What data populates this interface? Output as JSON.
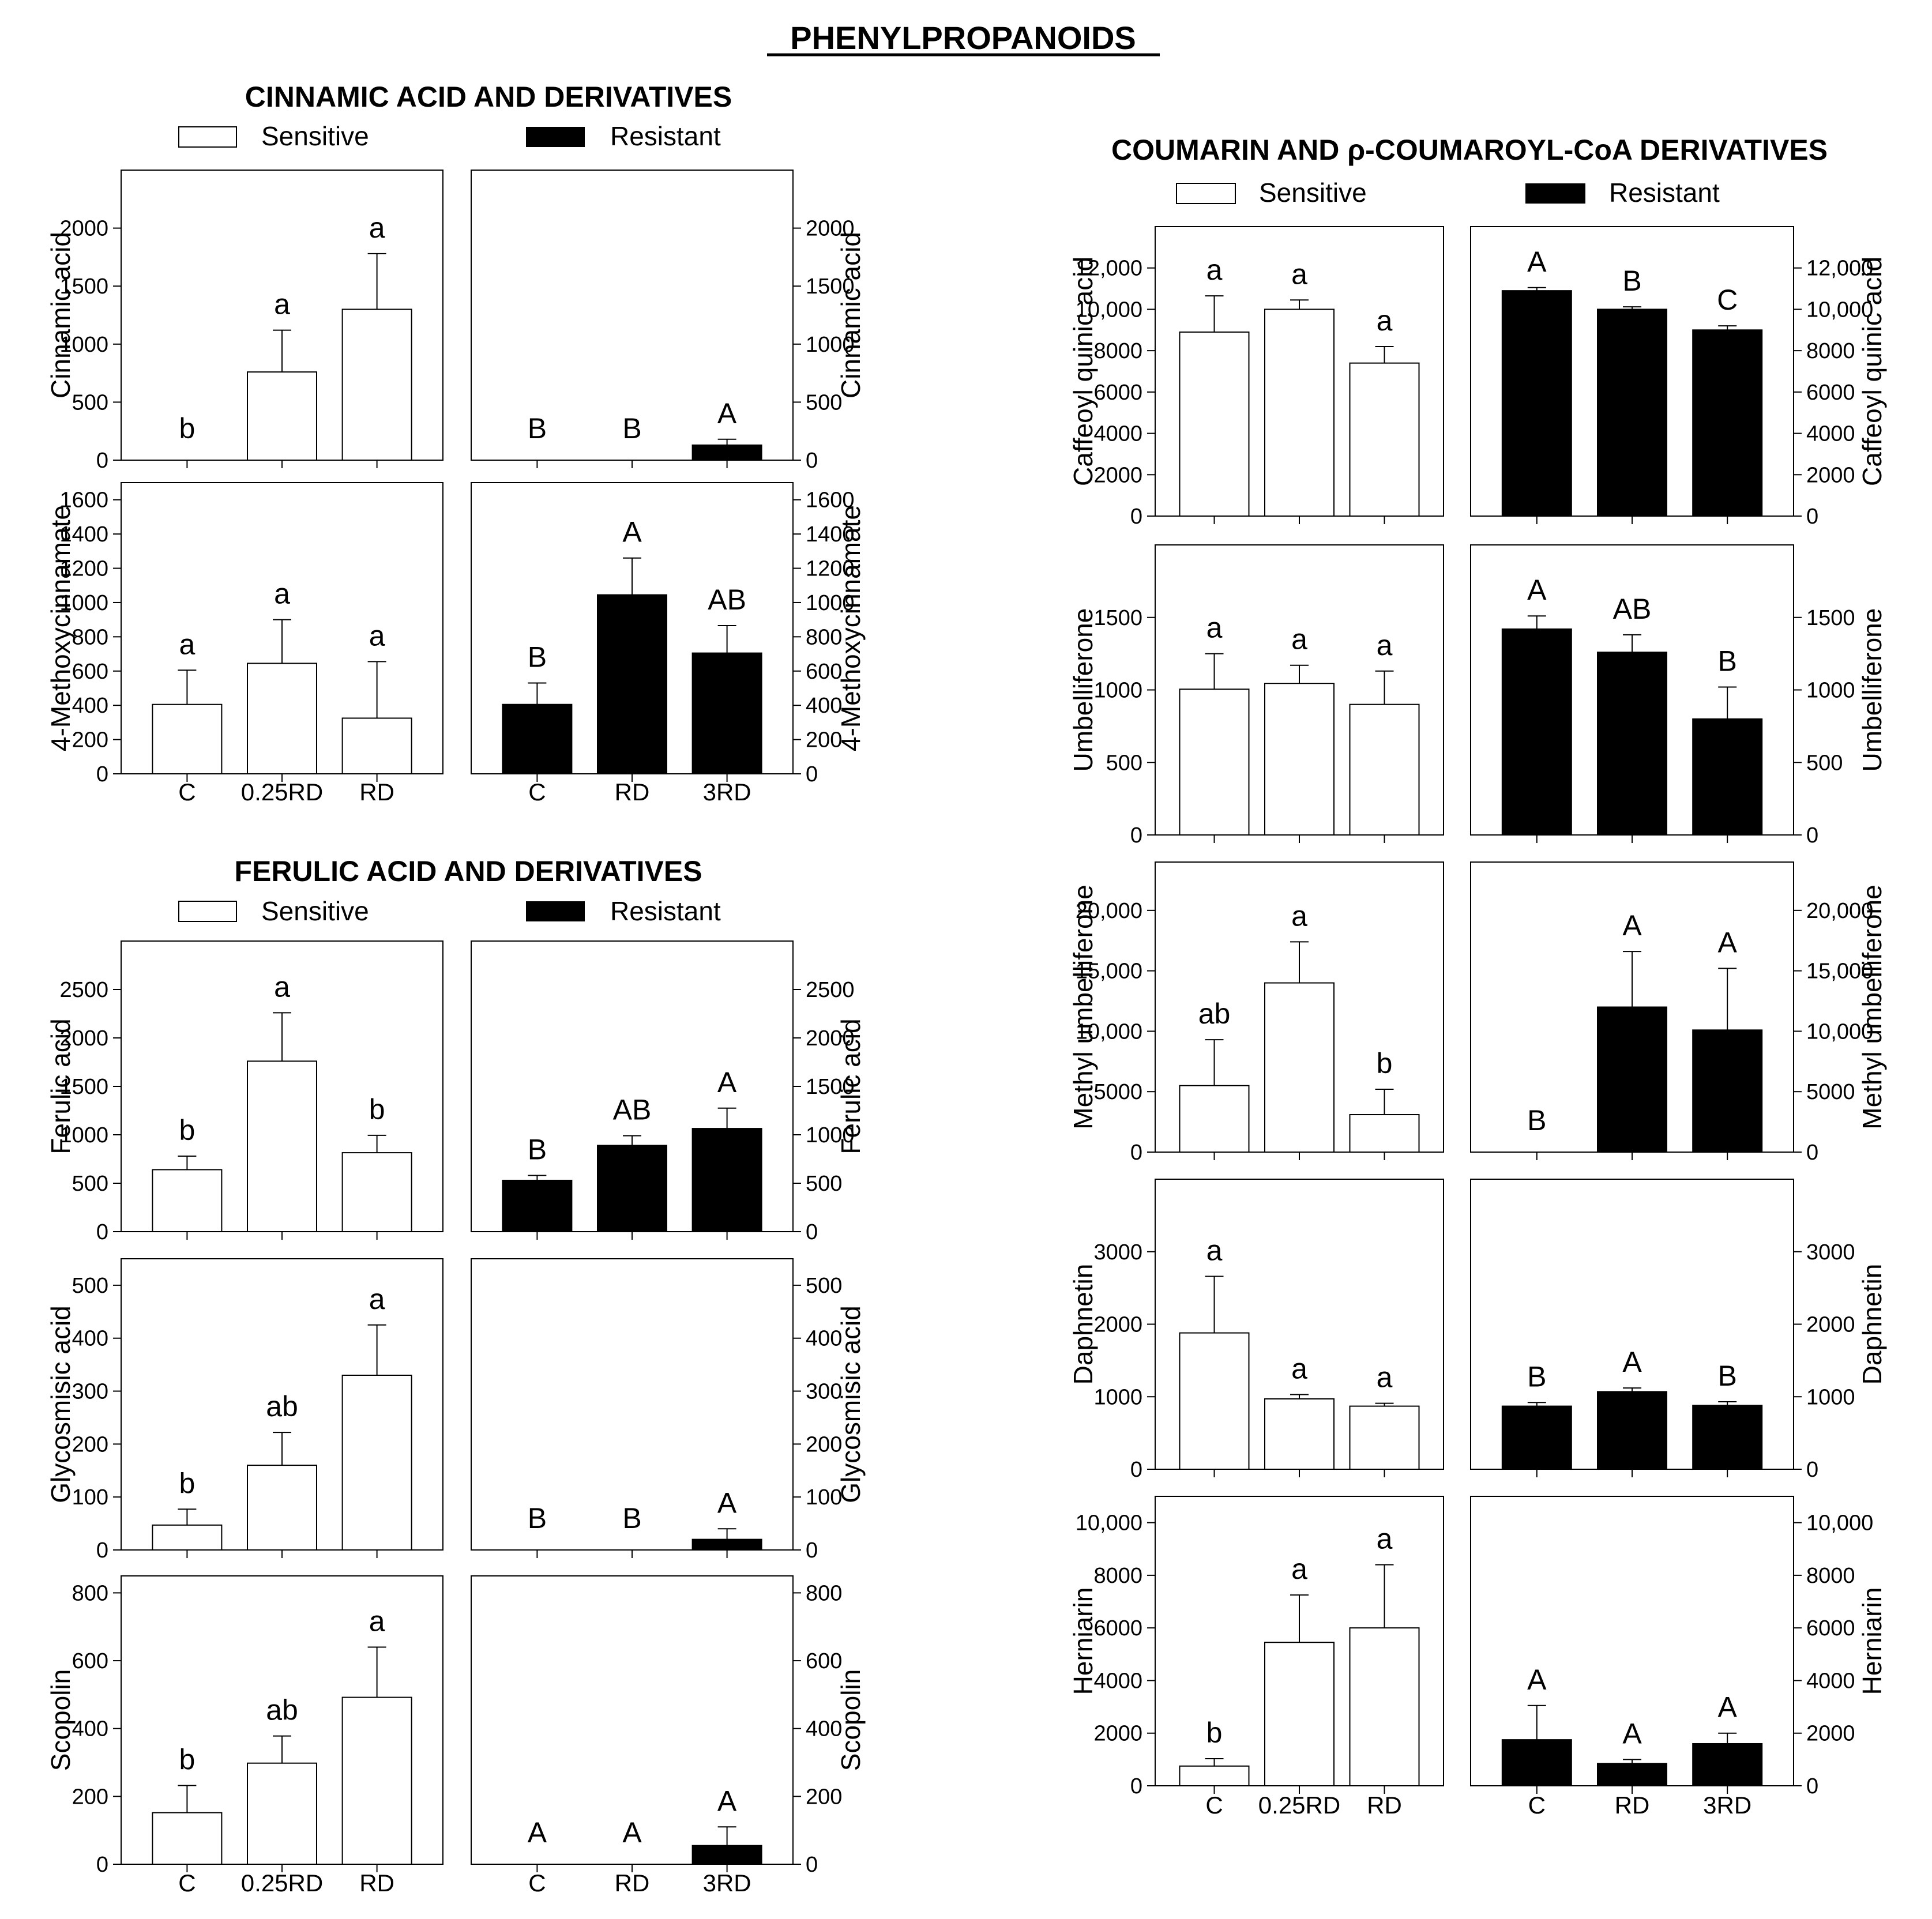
{
  "title": "PHENYLPROPANOIDS",
  "sections": [
    {
      "title": "CINNAMIC ACID AND DERIVATIVES",
      "legend": {
        "sensitive": "Sensitive",
        "resistant": "Resistant"
      }
    },
    {
      "title": "FERULIC ACID AND DERIVATIVES",
      "legend": {
        "sensitive": "Sensitive",
        "resistant": "Resistant"
      }
    },
    {
      "title": "COUMARIN AND ρ-COUMAROYL-CoA DERIVATIVES",
      "legend": {
        "sensitive": "Sensitive",
        "resistant": "Resistant"
      }
    }
  ],
  "x_labels": {
    "sensitive": [
      "C",
      "0.25RD",
      "RD"
    ],
    "resistant": [
      "C",
      "RD",
      "3RD"
    ]
  },
  "chart_data": [
    {
      "type": "bar",
      "ylabel": "Cinnamic acid",
      "ylim": [
        0,
        2500
      ],
      "ticks": [
        0,
        500,
        1000,
        1500,
        2000
      ],
      "tick_labels": [
        "0",
        "500",
        "1000",
        "1500",
        "2000"
      ],
      "series": [
        {
          "name": "Sensitive",
          "categories": [
            "C",
            "0.25RD",
            "RD"
          ],
          "values": [
            0,
            760,
            1300
          ],
          "errors": [
            0,
            360,
            480
          ],
          "letters": [
            "b",
            "a",
            "a"
          ]
        },
        {
          "name": "Resistant",
          "categories": [
            "C",
            "RD",
            "3RD"
          ],
          "values": [
            0,
            0,
            130
          ],
          "errors": [
            0,
            0,
            50
          ],
          "letters": [
            "B",
            "B",
            "A"
          ]
        }
      ]
    },
    {
      "type": "bar",
      "ylabel": "4-Methoxycinnamate",
      "ylim": [
        0,
        1700
      ],
      "ticks": [
        0,
        200,
        400,
        600,
        800,
        1000,
        1200,
        1400,
        1600
      ],
      "tick_labels": [
        "0",
        "200",
        "400",
        "600",
        "800",
        "1000",
        "1200",
        "1400",
        "1600"
      ],
      "series": [
        {
          "name": "Sensitive",
          "categories": [
            "C",
            "0.25RD",
            "RD"
          ],
          "values": [
            405,
            645,
            325
          ],
          "errors": [
            200,
            255,
            330
          ],
          "letters": [
            "a",
            "a",
            "a"
          ]
        },
        {
          "name": "Resistant",
          "categories": [
            "C",
            "RD",
            "3RD"
          ],
          "values": [
            405,
            1045,
            705
          ],
          "errors": [
            125,
            215,
            160
          ],
          "letters": [
            "B",
            "A",
            "AB"
          ]
        }
      ]
    },
    {
      "type": "bar",
      "ylabel": "Ferulic acid",
      "ylim": [
        0,
        3000
      ],
      "ticks": [
        0,
        500,
        1000,
        1500,
        2000,
        2500
      ],
      "tick_labels": [
        "0",
        "500",
        "1000",
        "1500",
        "2000",
        "2500"
      ],
      "series": [
        {
          "name": "Sensitive",
          "categories": [
            "C",
            "0.25RD",
            "RD"
          ],
          "values": [
            640,
            1760,
            815
          ],
          "errors": [
            140,
            500,
            180
          ],
          "letters": [
            "b",
            "a",
            "b"
          ]
        },
        {
          "name": "Resistant",
          "categories": [
            "C",
            "RD",
            "3RD"
          ],
          "values": [
            530,
            890,
            1065
          ],
          "errors": [
            50,
            100,
            210
          ],
          "letters": [
            "B",
            "AB",
            "A"
          ]
        }
      ]
    },
    {
      "type": "bar",
      "ylabel": "Glycosmisic acid",
      "ylim": [
        0,
        550
      ],
      "ticks": [
        0,
        100,
        200,
        300,
        400,
        500
      ],
      "tick_labels": [
        "0",
        "100",
        "200",
        "300",
        "400",
        "500"
      ],
      "series": [
        {
          "name": "Sensitive",
          "categories": [
            "C",
            "0.25RD",
            "RD"
          ],
          "values": [
            47,
            160,
            330
          ],
          "errors": [
            30,
            62,
            95
          ],
          "letters": [
            "b",
            "ab",
            "a"
          ]
        },
        {
          "name": "Resistant",
          "categories": [
            "C",
            "RD",
            "3RD"
          ],
          "values": [
            0,
            0,
            20
          ],
          "errors": [
            0,
            0,
            20
          ],
          "letters": [
            "B",
            "B",
            "A"
          ]
        }
      ]
    },
    {
      "type": "bar",
      "ylabel": "Scopolin",
      "ylim": [
        0,
        850
      ],
      "ticks": [
        0,
        200,
        400,
        600,
        800
      ],
      "tick_labels": [
        "0",
        "200",
        "400",
        "600",
        "800"
      ],
      "series": [
        {
          "name": "Sensitive",
          "categories": [
            "C",
            "0.25RD",
            "RD"
          ],
          "values": [
            152,
            298,
            492
          ],
          "errors": [
            80,
            80,
            148
          ],
          "letters": [
            "b",
            "ab",
            "a"
          ]
        },
        {
          "name": "Resistant",
          "categories": [
            "C",
            "RD",
            "3RD"
          ],
          "values": [
            0,
            0,
            55
          ],
          "errors": [
            0,
            0,
            55
          ],
          "letters": [
            "A",
            "A",
            "A"
          ]
        }
      ]
    },
    {
      "type": "bar",
      "ylabel": "Caffeoyl quinic acid",
      "ylim": [
        0,
        14000
      ],
      "ticks": [
        0,
        2000,
        4000,
        6000,
        8000,
        10000,
        12000
      ],
      "tick_labels": [
        "0",
        "2000",
        "4000",
        "6000",
        "8000",
        "10,000",
        "12,000"
      ],
      "series": [
        {
          "name": "Sensitive",
          "categories": [
            "C",
            "0.25RD",
            "RD"
          ],
          "values": [
            8900,
            10000,
            7400
          ],
          "errors": [
            1750,
            450,
            800
          ],
          "letters": [
            "a",
            "a",
            "a"
          ]
        },
        {
          "name": "Resistant",
          "categories": [
            "C",
            "RD",
            "3RD"
          ],
          "values": [
            10900,
            10000,
            9000
          ],
          "errors": [
            150,
            120,
            200
          ],
          "letters": [
            "A",
            "B",
            "C"
          ]
        }
      ]
    },
    {
      "type": "bar",
      "ylabel": "Umbelliferone",
      "ylim": [
        0,
        2000
      ],
      "ticks": [
        0,
        500,
        1000,
        1500
      ],
      "tick_labels": [
        "0",
        "500",
        "1000",
        "1500"
      ],
      "series": [
        {
          "name": "Sensitive",
          "categories": [
            "C",
            "0.25RD",
            "RD"
          ],
          "values": [
            1005,
            1045,
            900
          ],
          "errors": [
            245,
            125,
            230
          ],
          "letters": [
            "a",
            "a",
            "a"
          ]
        },
        {
          "name": "Resistant",
          "categories": [
            "C",
            "RD",
            "3RD"
          ],
          "values": [
            1420,
            1260,
            800
          ],
          "errors": [
            90,
            120,
            220
          ],
          "letters": [
            "A",
            "AB",
            "B"
          ]
        }
      ]
    },
    {
      "type": "bar",
      "ylabel": "Methyl umbelliferone",
      "ylim": [
        0,
        24000
      ],
      "ticks": [
        0,
        5000,
        10000,
        15000,
        20000
      ],
      "tick_labels": [
        "0",
        "5000",
        "10,000",
        "15,000",
        "20,000"
      ],
      "series": [
        {
          "name": "Sensitive",
          "categories": [
            "C",
            "0.25RD",
            "RD"
          ],
          "values": [
            5500,
            14000,
            3100
          ],
          "errors": [
            3800,
            3400,
            2100
          ],
          "letters": [
            "ab",
            "a",
            "b"
          ]
        },
        {
          "name": "Resistant",
          "categories": [
            "C",
            "RD",
            "3RD"
          ],
          "values": [
            0,
            12000,
            10100
          ],
          "errors": [
            0,
            4600,
            5100
          ],
          "letters": [
            "B",
            "A",
            "A"
          ]
        }
      ]
    },
    {
      "type": "bar",
      "ylabel": "Daphnetin",
      "ylim": [
        0,
        4000
      ],
      "ticks": [
        0,
        1000,
        2000,
        3000
      ],
      "tick_labels": [
        "0",
        "1000",
        "2000",
        "3000"
      ],
      "series": [
        {
          "name": "Sensitive",
          "categories": [
            "C",
            "0.25RD",
            "RD"
          ],
          "values": [
            1880,
            970,
            870
          ],
          "errors": [
            780,
            60,
            40
          ],
          "letters": [
            "a",
            "a",
            "a"
          ]
        },
        {
          "name": "Resistant",
          "categories": [
            "C",
            "RD",
            "3RD"
          ],
          "values": [
            870,
            1070,
            880
          ],
          "errors": [
            50,
            50,
            50
          ],
          "letters": [
            "B",
            "A",
            "B"
          ]
        }
      ]
    },
    {
      "type": "bar",
      "ylabel": "Herniarin",
      "ylim": [
        0,
        11000
      ],
      "ticks": [
        0,
        2000,
        4000,
        6000,
        8000,
        10000
      ],
      "tick_labels": [
        "0",
        "2000",
        "4000",
        "6000",
        "8000",
        "10,000"
      ],
      "series": [
        {
          "name": "Sensitive",
          "categories": [
            "C",
            "0.25RD",
            "RD"
          ],
          "values": [
            750,
            5450,
            6000
          ],
          "errors": [
            280,
            1800,
            2400
          ],
          "letters": [
            "b",
            "a",
            "a"
          ]
        },
        {
          "name": "Resistant",
          "categories": [
            "C",
            "RD",
            "3RD"
          ],
          "values": [
            1750,
            850,
            1600
          ],
          "errors": [
            1300,
            150,
            400
          ],
          "letters": [
            "A",
            "A",
            "A"
          ]
        }
      ]
    }
  ]
}
